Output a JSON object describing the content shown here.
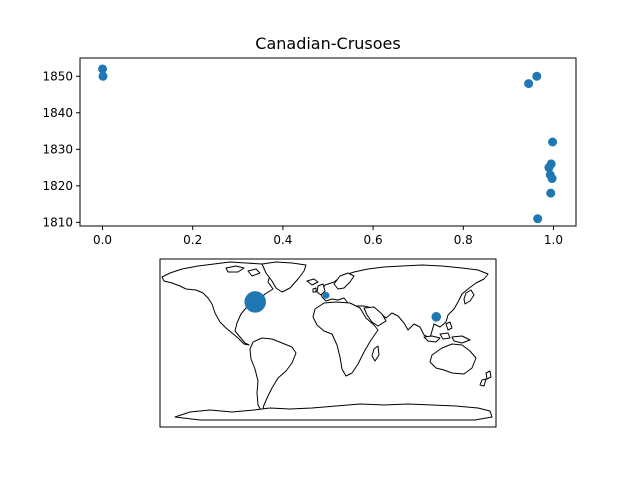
{
  "chart_data": [
    {
      "type": "scatter",
      "title": "Canadian-Crusoes",
      "xlabel": "",
      "ylabel": "",
      "xlim": [
        -0.05,
        1.05
      ],
      "ylim": [
        1809,
        1855
      ],
      "xticks": [
        0.0,
        0.2,
        0.4,
        0.6,
        0.8,
        1.0
      ],
      "xtick_labels": [
        "0.0",
        "0.2",
        "0.4",
        "0.6",
        "0.8",
        "1.0"
      ],
      "yticks": [
        1810,
        1820,
        1830,
        1840,
        1850
      ],
      "ytick_labels": [
        "1810",
        "1820",
        "1830",
        "1840",
        "1850"
      ],
      "grid": false,
      "marker_color": "#1f77b4",
      "points": [
        {
          "x": 0.0,
          "y": 1852
        },
        {
          "x": 0.001,
          "y": 1850
        },
        {
          "x": 0.945,
          "y": 1848
        },
        {
          "x": 0.963,
          "y": 1850
        },
        {
          "x": 0.998,
          "y": 1832
        },
        {
          "x": 0.995,
          "y": 1826
        },
        {
          "x": 0.99,
          "y": 1825
        },
        {
          "x": 0.993,
          "y": 1823
        },
        {
          "x": 0.997,
          "y": 1822
        },
        {
          "x": 0.994,
          "y": 1818
        },
        {
          "x": 0.965,
          "y": 1811
        }
      ]
    },
    {
      "type": "scatter",
      "subtype": "world-map",
      "projection": "plate-carree",
      "lon_range": [
        -180,
        180
      ],
      "lat_range": [
        -90,
        90
      ],
      "marker_color": "#1f77b4",
      "points": [
        {
          "lon": -78,
          "lat": 44,
          "weight": 10
        },
        {
          "lon": -2,
          "lat": 51,
          "weight": 1
        },
        {
          "lon": 116,
          "lat": 28,
          "weight": 2
        }
      ]
    }
  ]
}
